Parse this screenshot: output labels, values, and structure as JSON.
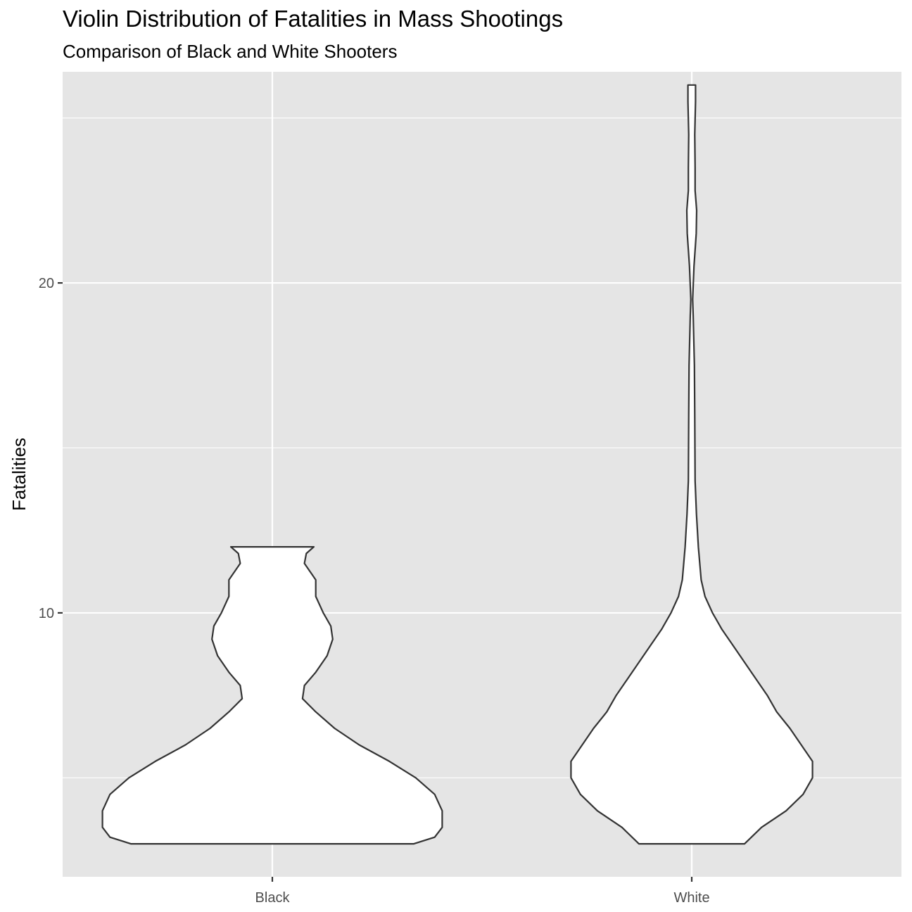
{
  "chart_data": {
    "type": "violin",
    "title": "Violin Distribution of Fatalities in Mass Shootings",
    "subtitle": "Comparison of Black and White Shooters",
    "xlabel": "",
    "ylabel": "Fatalities",
    "categories": [
      "Black",
      "White"
    ],
    "y_ticks": [
      10,
      20
    ],
    "ylim": [
      2.0,
      26.4
    ],
    "grid": true,
    "colors": {
      "panel": "#E5E5E5",
      "grid": "#FFFFFF",
      "violin_fill": "#FFFFFF",
      "violin_stroke": "#333333",
      "tick_text": "#4D4D4D"
    },
    "series": [
      {
        "category": "Black",
        "y_min": 3,
        "y_max": 12,
        "density_profile": [
          {
            "y": 3.0,
            "w": 0.75
          },
          {
            "y": 3.2,
            "w": 0.86
          },
          {
            "y": 3.5,
            "w": 0.9
          },
          {
            "y": 4.0,
            "w": 0.9
          },
          {
            "y": 4.5,
            "w": 0.86
          },
          {
            "y": 5.0,
            "w": 0.76
          },
          {
            "y": 5.5,
            "w": 0.62
          },
          {
            "y": 6.0,
            "w": 0.46
          },
          {
            "y": 6.5,
            "w": 0.33
          },
          {
            "y": 7.0,
            "w": 0.23
          },
          {
            "y": 7.4,
            "w": 0.16
          },
          {
            "y": 7.8,
            "w": 0.17
          },
          {
            "y": 8.2,
            "w": 0.23
          },
          {
            "y": 8.7,
            "w": 0.29
          },
          {
            "y": 9.2,
            "w": 0.32
          },
          {
            "y": 9.6,
            "w": 0.31
          },
          {
            "y": 10.0,
            "w": 0.27
          },
          {
            "y": 10.5,
            "w": 0.23
          },
          {
            "y": 11.0,
            "w": 0.23
          },
          {
            "y": 11.5,
            "w": 0.17
          },
          {
            "y": 11.8,
            "w": 0.18
          },
          {
            "y": 12.0,
            "w": 0.22
          }
        ]
      },
      {
        "category": "White",
        "y_min": 3,
        "y_max": 26,
        "density_profile": [
          {
            "y": 3.0,
            "w": 0.28
          },
          {
            "y": 3.5,
            "w": 0.37
          },
          {
            "y": 4.0,
            "w": 0.5
          },
          {
            "y": 4.5,
            "w": 0.59
          },
          {
            "y": 5.0,
            "w": 0.64
          },
          {
            "y": 5.5,
            "w": 0.64
          },
          {
            "y": 6.0,
            "w": 0.58
          },
          {
            "y": 6.5,
            "w": 0.52
          },
          {
            "y": 7.0,
            "w": 0.45
          },
          {
            "y": 7.5,
            "w": 0.4
          },
          {
            "y": 8.0,
            "w": 0.34
          },
          {
            "y": 8.5,
            "w": 0.28
          },
          {
            "y": 9.0,
            "w": 0.22
          },
          {
            "y": 9.5,
            "w": 0.16
          },
          {
            "y": 10.0,
            "w": 0.11
          },
          {
            "y": 10.5,
            "w": 0.07
          },
          {
            "y": 11.0,
            "w": 0.05
          },
          {
            "y": 12.0,
            "w": 0.035
          },
          {
            "y": 13.0,
            "w": 0.025
          },
          {
            "y": 14.0,
            "w": 0.018
          },
          {
            "y": 16.0,
            "w": 0.016
          },
          {
            "y": 17.5,
            "w": 0.014
          },
          {
            "y": 19.0,
            "w": 0.008
          },
          {
            "y": 19.5,
            "w": 0.005
          },
          {
            "y": 20.5,
            "w": 0.012
          },
          {
            "y": 21.5,
            "w": 0.024
          },
          {
            "y": 22.2,
            "w": 0.026
          },
          {
            "y": 22.8,
            "w": 0.018
          },
          {
            "y": 23.5,
            "w": 0.018
          },
          {
            "y": 24.5,
            "w": 0.016
          },
          {
            "y": 25.5,
            "w": 0.02
          },
          {
            "y": 26.0,
            "w": 0.02
          }
        ]
      }
    ]
  }
}
